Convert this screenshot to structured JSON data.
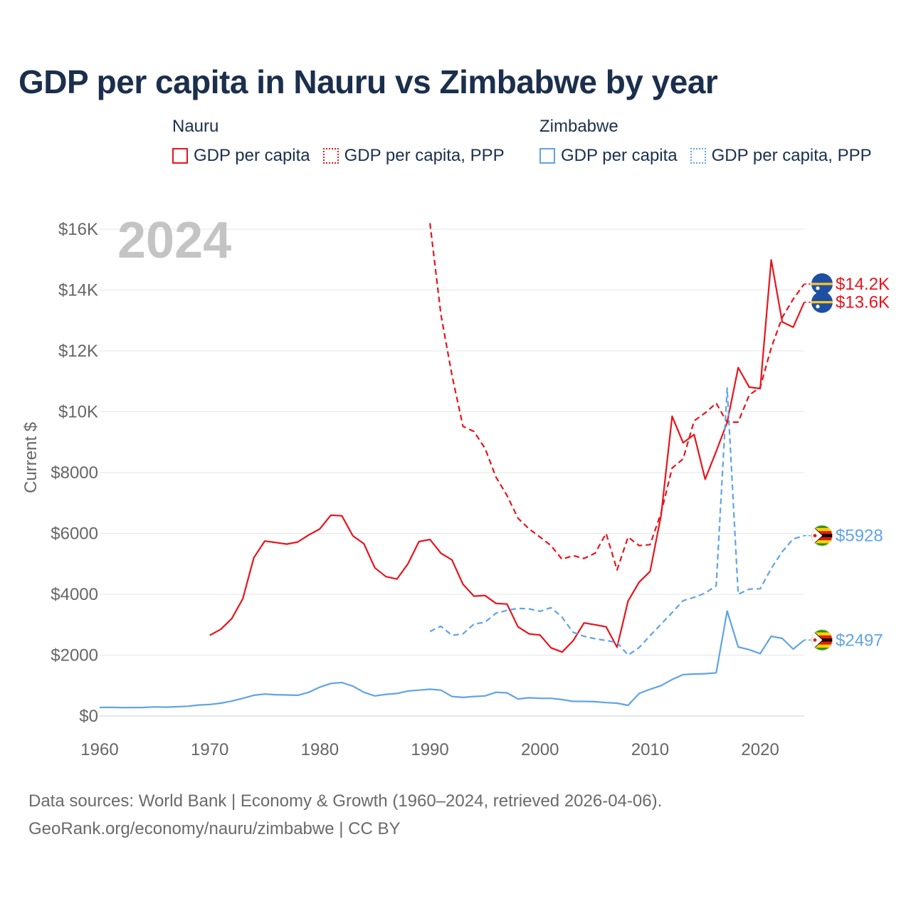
{
  "title": "GDP per capita in Nauru vs Zimbabwe by year",
  "legend": {
    "nauru": {
      "title": "Nauru",
      "items": [
        "GDP per capita",
        "GDP per capita, PPP"
      ]
    },
    "zimbabwe": {
      "title": "Zimbabwe",
      "items": [
        "GDP per capita",
        "GDP per capita, PPP"
      ]
    }
  },
  "colors": {
    "nauru": "#e8141c",
    "zimbabwe": "#5fa4e6",
    "grid": "#e6e6e6",
    "axis_text": "#666666",
    "year_watermark": "#c4c4c4"
  },
  "footer": {
    "line1": "Data sources: World Bank | Economy & Growth (1960–2024, retrieved 2026-04-06).",
    "line2": "GeoRank.org/economy/nauru/zimbabwe | CC BY"
  },
  "chart_data": {
    "type": "line",
    "year_label": "2024",
    "ylabel": "Current $",
    "xlim": [
      1960,
      2024
    ],
    "ylim": [
      0,
      16000
    ],
    "x_ticks": [
      1960,
      1970,
      1980,
      1990,
      2000,
      2010,
      2020
    ],
    "y_ticks": [
      {
        "value": 0,
        "label": "$0"
      },
      {
        "value": 2000,
        "label": "$2000"
      },
      {
        "value": 4000,
        "label": "$4000"
      },
      {
        "value": 6000,
        "label": "$6000"
      },
      {
        "value": 8000,
        "label": "$8000"
      },
      {
        "value": 10000,
        "label": "$10K"
      },
      {
        "value": 12000,
        "label": "$12K"
      },
      {
        "value": 14000,
        "label": "$14K"
      },
      {
        "value": 16000,
        "label": "$16K"
      }
    ],
    "series": [
      {
        "name": "Nauru GDP per capita",
        "country": "nauru",
        "dashed": false,
        "end_label": "$13.6K",
        "x": [
          1970,
          1971,
          1972,
          1973,
          1974,
          1975,
          1976,
          1977,
          1978,
          1979,
          1980,
          1981,
          1982,
          1983,
          1984,
          1985,
          1986,
          1987,
          1988,
          1989,
          1990,
          1991,
          1992,
          1993,
          1994,
          1995,
          1996,
          1997,
          1998,
          1999,
          2000,
          2001,
          2002,
          2003,
          2004,
          2005,
          2006,
          2007,
          2008,
          2009,
          2010,
          2011,
          2012,
          2013,
          2014,
          2015,
          2016,
          2017,
          2018,
          2019,
          2020,
          2021,
          2022,
          2023,
          2024
        ],
        "y": [
          2650,
          2850,
          3200,
          3850,
          5200,
          5750,
          5700,
          5650,
          5720,
          5950,
          6150,
          6600,
          6580,
          5920,
          5660,
          4870,
          4580,
          4500,
          5000,
          5730,
          5800,
          5350,
          5130,
          4330,
          3940,
          3960,
          3700,
          3680,
          2930,
          2700,
          2660,
          2240,
          2100,
          2470,
          3060,
          3000,
          2930,
          2260,
          3780,
          4400,
          4750,
          6600,
          9850,
          8980,
          9250,
          7780,
          8700,
          9650,
          11450,
          10810,
          10760,
          14990,
          12950,
          12780,
          13600
        ]
      },
      {
        "name": "Nauru GDP per capita, PPP",
        "country": "nauru",
        "dashed": true,
        "end_label": "$14.2K",
        "x": [
          1990,
          1991,
          1992,
          1993,
          1994,
          1995,
          1996,
          1997,
          1998,
          1999,
          2000,
          2001,
          2002,
          2003,
          2004,
          2005,
          2006,
          2007,
          2008,
          2009,
          2010,
          2011,
          2012,
          2013,
          2014,
          2015,
          2016,
          2017,
          2018,
          2019,
          2020,
          2021,
          2022,
          2023,
          2024
        ],
        "y": [
          16200,
          13200,
          11200,
          9520,
          9350,
          8800,
          7850,
          7250,
          6500,
          6150,
          5880,
          5600,
          5150,
          5270,
          5180,
          5350,
          6000,
          4800,
          5880,
          5600,
          5630,
          6680,
          8150,
          8450,
          9700,
          9960,
          10280,
          9650,
          9660,
          10550,
          10800,
          12100,
          13100,
          13700,
          14200
        ]
      },
      {
        "name": "Zimbabwe GDP per capita",
        "country": "zimbabwe",
        "dashed": false,
        "end_label": "$2497",
        "x": [
          1960,
          1961,
          1962,
          1963,
          1964,
          1965,
          1966,
          1967,
          1968,
          1969,
          1970,
          1971,
          1972,
          1973,
          1974,
          1975,
          1976,
          1977,
          1978,
          1979,
          1980,
          1981,
          1982,
          1983,
          1984,
          1985,
          1986,
          1987,
          1988,
          1989,
          1990,
          1991,
          1992,
          1993,
          1994,
          1995,
          1996,
          1997,
          1998,
          1999,
          2000,
          2001,
          2002,
          2003,
          2004,
          2005,
          2006,
          2007,
          2008,
          2009,
          2010,
          2011,
          2012,
          2013,
          2014,
          2015,
          2016,
          2017,
          2018,
          2019,
          2020,
          2021,
          2022,
          2023,
          2024
        ],
        "y": [
          280,
          285,
          275,
          278,
          280,
          300,
          290,
          305,
          320,
          360,
          380,
          420,
          490,
          580,
          680,
          720,
          700,
          690,
          680,
          780,
          950,
          1070,
          1100,
          980,
          780,
          660,
          710,
          740,
          820,
          850,
          880,
          850,
          640,
          610,
          640,
          660,
          780,
          760,
          560,
          600,
          580,
          580,
          540,
          480,
          480,
          470,
          440,
          420,
          350,
          740,
          880,
          1000,
          1200,
          1360,
          1380,
          1390,
          1420,
          3450,
          2270,
          2180,
          2050,
          2620,
          2550,
          2200,
          2497
        ]
      },
      {
        "name": "Zimbabwe GDP per capita, PPP",
        "country": "zimbabwe",
        "dashed": true,
        "end_label": "$5928",
        "x": [
          1990,
          1991,
          1992,
          1993,
          1994,
          1995,
          1996,
          1997,
          1998,
          1999,
          2000,
          2001,
          2002,
          2003,
          2004,
          2005,
          2006,
          2007,
          2008,
          2009,
          2010,
          2011,
          2012,
          2013,
          2014,
          2015,
          2016,
          2017,
          2018,
          2019,
          2020,
          2021,
          2022,
          2023,
          2024
        ],
        "y": [
          2780,
          2950,
          2650,
          2700,
          3020,
          3080,
          3380,
          3470,
          3540,
          3520,
          3440,
          3560,
          3250,
          2750,
          2620,
          2540,
          2480,
          2420,
          2000,
          2250,
          2640,
          3020,
          3400,
          3790,
          3900,
          4040,
          4280,
          10780,
          4000,
          4170,
          4180,
          4850,
          5400,
          5820,
          5928
        ]
      }
    ]
  }
}
